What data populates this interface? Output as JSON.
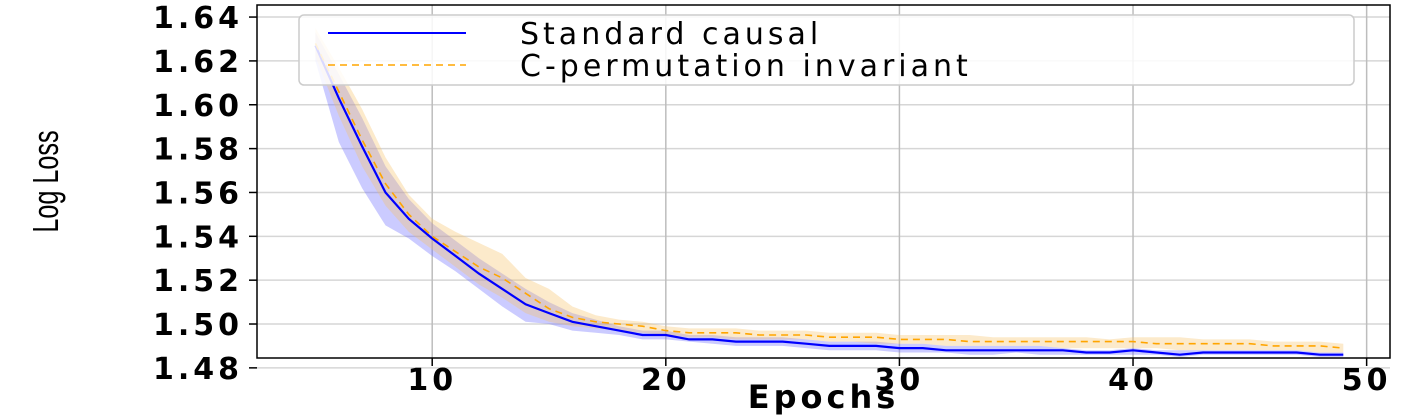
{
  "chart_data": {
    "type": "line",
    "title": "",
    "xlabel": "Epochs",
    "ylabel": "Log Loss",
    "xlim": [
      2.5,
      51
    ],
    "ylim": [
      1.4845,
      1.6455
    ],
    "xticks": [
      10,
      20,
      30,
      40,
      50
    ],
    "xtick_labels": [
      "10",
      "20",
      "30",
      "40",
      "50"
    ],
    "yticks": [
      1.48,
      1.5,
      1.52,
      1.54,
      1.56,
      1.58,
      1.6,
      1.62,
      1.64
    ],
    "ytick_labels": [
      "1.48",
      "1.50",
      "1.52",
      "1.54",
      "1.56",
      "1.58",
      "1.60",
      "1.62",
      "1.64"
    ],
    "grid": true,
    "legend_position": "top-right",
    "x": [
      5,
      6,
      7,
      8,
      9,
      10,
      11,
      12,
      13,
      14,
      15,
      16,
      17,
      18,
      19,
      20,
      21,
      22,
      23,
      24,
      25,
      26,
      27,
      28,
      29,
      30,
      31,
      32,
      33,
      34,
      35,
      36,
      37,
      38,
      39,
      40,
      41,
      42,
      43,
      44,
      45,
      46,
      47,
      48,
      49
    ],
    "series": [
      {
        "name": "Standard causal",
        "color": "#0000ff",
        "style": "solid",
        "values": [
          1.627,
          1.603,
          1.581,
          1.56,
          1.548,
          1.539,
          1.531,
          1.523,
          1.516,
          1.509,
          1.505,
          1.501,
          1.499,
          1.497,
          1.495,
          1.495,
          1.493,
          1.493,
          1.492,
          1.492,
          1.492,
          1.491,
          1.49,
          1.49,
          1.49,
          1.489,
          1.489,
          1.488,
          1.488,
          1.488,
          1.488,
          1.488,
          1.488,
          1.487,
          1.487,
          1.488,
          1.487,
          1.486,
          1.487,
          1.487,
          1.487,
          1.487,
          1.487,
          1.486,
          1.486
        ],
        "lower": [
          1.62,
          1.583,
          1.562,
          1.545,
          1.539,
          1.531,
          1.524,
          1.516,
          1.508,
          1.501,
          1.5,
          1.497,
          1.496,
          1.495,
          1.493,
          1.493,
          1.492,
          1.491,
          1.49,
          1.49,
          1.49,
          1.489,
          1.488,
          1.488,
          1.488,
          1.487,
          1.487,
          1.487,
          1.486,
          1.486,
          1.487,
          1.486,
          1.486,
          1.486,
          1.486,
          1.486,
          1.486,
          1.485,
          1.486,
          1.486,
          1.486,
          1.486,
          1.486,
          1.485,
          1.485
        ],
        "upper": [
          1.633,
          1.614,
          1.594,
          1.572,
          1.557,
          1.546,
          1.538,
          1.53,
          1.523,
          1.516,
          1.51,
          1.505,
          1.502,
          1.499,
          1.497,
          1.497,
          1.495,
          1.495,
          1.494,
          1.494,
          1.494,
          1.493,
          1.492,
          1.492,
          1.492,
          1.491,
          1.491,
          1.49,
          1.49,
          1.49,
          1.49,
          1.49,
          1.489,
          1.488,
          1.488,
          1.489,
          1.488,
          1.488,
          1.488,
          1.488,
          1.488,
          1.488,
          1.488,
          1.487,
          1.487
        ]
      },
      {
        "name": "C-permutation invariant",
        "color": "#ffa500",
        "style": "dashed",
        "values": [
          1.628,
          1.606,
          1.584,
          1.564,
          1.55,
          1.54,
          1.533,
          1.526,
          1.521,
          1.514,
          1.507,
          1.503,
          1.501,
          1.5,
          1.499,
          1.497,
          1.496,
          1.496,
          1.496,
          1.495,
          1.495,
          1.495,
          1.494,
          1.494,
          1.494,
          1.493,
          1.493,
          1.493,
          1.492,
          1.492,
          1.492,
          1.492,
          1.492,
          1.492,
          1.492,
          1.492,
          1.491,
          1.491,
          1.491,
          1.491,
          1.491,
          1.49,
          1.49,
          1.49,
          1.489
        ],
        "lower": [
          1.622,
          1.595,
          1.572,
          1.554,
          1.542,
          1.534,
          1.526,
          1.518,
          1.512,
          1.505,
          1.501,
          1.499,
          1.498,
          1.497,
          1.496,
          1.495,
          1.494,
          1.494,
          1.493,
          1.493,
          1.493,
          1.493,
          1.492,
          1.492,
          1.491,
          1.491,
          1.491,
          1.49,
          1.49,
          1.49,
          1.49,
          1.49,
          1.489,
          1.489,
          1.489,
          1.489,
          1.489,
          1.488,
          1.488,
          1.488,
          1.488,
          1.488,
          1.488,
          1.487,
          1.487
        ],
        "upper": [
          1.635,
          1.617,
          1.598,
          1.576,
          1.559,
          1.548,
          1.542,
          1.537,
          1.532,
          1.521,
          1.516,
          1.508,
          1.504,
          1.502,
          1.501,
          1.499,
          1.498,
          1.498,
          1.498,
          1.497,
          1.497,
          1.497,
          1.496,
          1.496,
          1.496,
          1.495,
          1.495,
          1.495,
          1.495,
          1.494,
          1.494,
          1.494,
          1.494,
          1.494,
          1.493,
          1.494,
          1.494,
          1.494,
          1.493,
          1.493,
          1.493,
          1.492,
          1.492,
          1.492,
          1.491
        ]
      }
    ]
  }
}
